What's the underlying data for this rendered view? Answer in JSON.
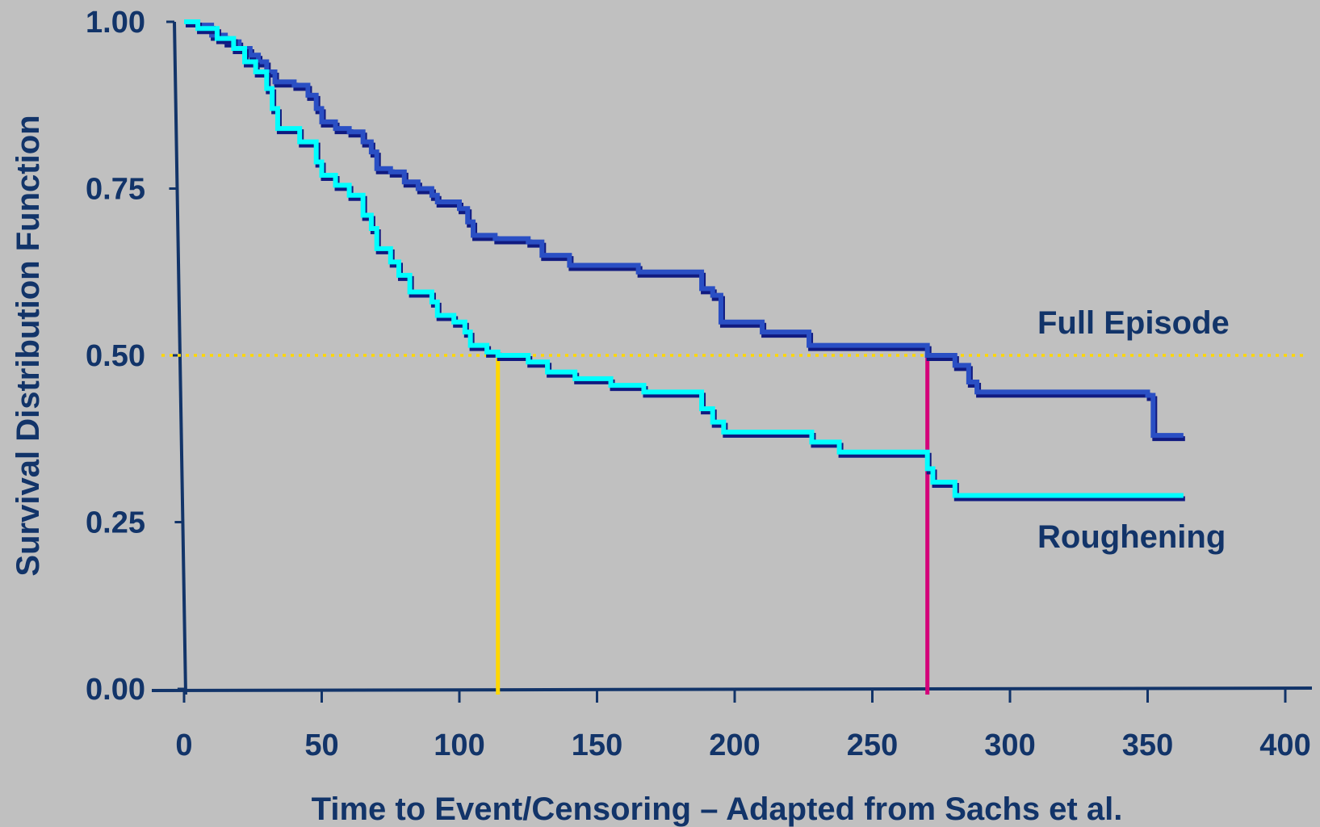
{
  "chart_data": {
    "type": "line",
    "subtype": "step (Kaplan-Meier survival curves)",
    "title": "",
    "xlabel": "Time to Event/Censoring – Adapted from Sachs et al.",
    "ylabel": "Survival Distribution Function",
    "xlim": [
      0,
      400
    ],
    "ylim": [
      0,
      1
    ],
    "x_ticks": [
      "0",
      "50",
      "100",
      "150",
      "200",
      "250",
      "300",
      "350",
      "400"
    ],
    "y_ticks": [
      "0.00",
      "0.25",
      "0.50",
      "0.75",
      "1.00"
    ],
    "grid": false,
    "legend": "none (direct labels at right)",
    "reference_line": {
      "y": 0.5,
      "style": "dotted",
      "color": "#ffd700"
    },
    "median_markers": [
      {
        "series": "Roughening",
        "x": 114,
        "color": "#ffd700"
      },
      {
        "series": "Full Episode",
        "x": 270,
        "color": "#d4007a"
      }
    ],
    "series": [
      {
        "name": "Full Episode",
        "color": "#2a4fc4",
        "shadow_color": "#101a80",
        "points": [
          [
            0,
            1.0
          ],
          [
            5,
            0.995
          ],
          [
            10,
            0.98
          ],
          [
            15,
            0.97
          ],
          [
            20,
            0.96
          ],
          [
            24,
            0.95
          ],
          [
            27,
            0.94
          ],
          [
            30,
            0.925
          ],
          [
            33,
            0.91
          ],
          [
            40,
            0.905
          ],
          [
            45,
            0.89
          ],
          [
            48,
            0.87
          ],
          [
            50,
            0.85
          ],
          [
            55,
            0.84
          ],
          [
            60,
            0.835
          ],
          [
            65,
            0.82
          ],
          [
            68,
            0.805
          ],
          [
            70,
            0.78
          ],
          [
            75,
            0.775
          ],
          [
            80,
            0.76
          ],
          [
            85,
            0.75
          ],
          [
            90,
            0.74
          ],
          [
            92,
            0.73
          ],
          [
            100,
            0.72
          ],
          [
            103,
            0.7
          ],
          [
            105,
            0.68
          ],
          [
            113,
            0.675
          ],
          [
            125,
            0.67
          ],
          [
            130,
            0.65
          ],
          [
            140,
            0.635
          ],
          [
            165,
            0.625
          ],
          [
            188,
            0.6
          ],
          [
            192,
            0.59
          ],
          [
            195,
            0.55
          ],
          [
            210,
            0.535
          ],
          [
            227,
            0.515
          ],
          [
            270,
            0.5
          ],
          [
            280,
            0.485
          ],
          [
            285,
            0.46
          ],
          [
            288,
            0.445
          ],
          [
            350,
            0.44
          ],
          [
            352,
            0.38
          ],
          [
            363,
            0.38
          ]
        ]
      },
      {
        "name": "Roughening",
        "color": "#00ffff",
        "shadow_color": "#101a80",
        "points": [
          [
            0,
            1.0
          ],
          [
            5,
            0.99
          ],
          [
            12,
            0.975
          ],
          [
            18,
            0.96
          ],
          [
            22,
            0.94
          ],
          [
            26,
            0.925
          ],
          [
            30,
            0.9
          ],
          [
            32,
            0.87
          ],
          [
            34,
            0.84
          ],
          [
            42,
            0.82
          ],
          [
            48,
            0.79
          ],
          [
            50,
            0.77
          ],
          [
            55,
            0.755
          ],
          [
            60,
            0.74
          ],
          [
            65,
            0.71
          ],
          [
            68,
            0.69
          ],
          [
            70,
            0.66
          ],
          [
            75,
            0.64
          ],
          [
            78,
            0.62
          ],
          [
            82,
            0.595
          ],
          [
            90,
            0.58
          ],
          [
            92,
            0.56
          ],
          [
            98,
            0.55
          ],
          [
            102,
            0.535
          ],
          [
            104,
            0.515
          ],
          [
            110,
            0.505
          ],
          [
            114,
            0.5
          ],
          [
            125,
            0.49
          ],
          [
            132,
            0.475
          ],
          [
            142,
            0.465
          ],
          [
            155,
            0.455
          ],
          [
            167,
            0.445
          ],
          [
            188,
            0.42
          ],
          [
            192,
            0.4
          ],
          [
            196,
            0.385
          ],
          [
            228,
            0.37
          ],
          [
            238,
            0.355
          ],
          [
            270,
            0.33
          ],
          [
            272,
            0.31
          ],
          [
            280,
            0.29
          ],
          [
            363,
            0.29
          ]
        ]
      }
    ],
    "direct_labels": [
      {
        "series": "Full Episode",
        "text": "Full Episode"
      },
      {
        "series": "Roughening",
        "text": "Roughening"
      }
    ]
  }
}
